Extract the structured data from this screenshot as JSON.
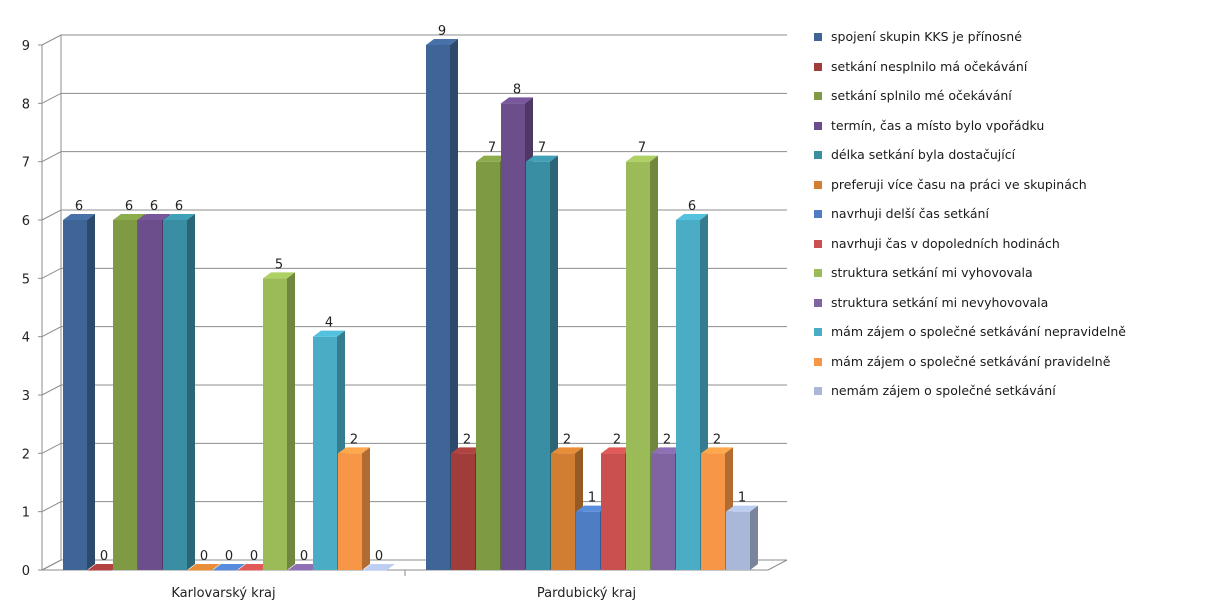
{
  "chart_data": {
    "type": "bar",
    "title": "",
    "xlabel": "",
    "ylabel": "",
    "ylim": [
      0,
      9
    ],
    "yticks": [
      0,
      1,
      2,
      3,
      4,
      5,
      6,
      7,
      8,
      9
    ],
    "grid": true,
    "legend_position": "right",
    "categories": [
      "Karlovarský kraj",
      "Pardubický kraj"
    ],
    "series": [
      {
        "name": "spojení skupin KKS je přínosné",
        "color": "#3F6596",
        "values": [
          6,
          9
        ]
      },
      {
        "name": "setkání nesplnilo má očekávání",
        "color": "#A03C3A",
        "values": [
          0,
          2
        ]
      },
      {
        "name": "setkání splnilo mé očekávání",
        "color": "#7E9A43",
        "values": [
          6,
          7
        ]
      },
      {
        "name": "termín, čas a místo bylo vpořádku",
        "color": "#6C4E8C",
        "values": [
          6,
          8
        ]
      },
      {
        "name": "délka setkání byla dostačující",
        "color": "#3A8EA3",
        "values": [
          6,
          7
        ]
      },
      {
        "name": "preferuji více času na práci ve skupinách",
        "color": "#D17E33",
        "values": [
          0,
          2
        ]
      },
      {
        "name": "navrhuji delší čas setkání",
        "color": "#4F7DC4",
        "values": [
          0,
          1
        ]
      },
      {
        "name": "navrhuji čas v dopoledních hodinách",
        "color": "#C9504E",
        "values": [
          0,
          2
        ]
      },
      {
        "name": "struktura setkání mi vyhovovala",
        "color": "#9BBB59",
        "values": [
          5,
          7
        ]
      },
      {
        "name": "struktura setkání mi nevyhovovala",
        "color": "#8064A2",
        "values": [
          0,
          2
        ]
      },
      {
        "name": "mám zájem o společné setkávání nepravidelně",
        "color": "#4BACC6",
        "values": [
          4,
          6
        ]
      },
      {
        "name": "mám zájem o společné setkávání pravidelně",
        "color": "#F79646",
        "values": [
          2,
          2
        ]
      },
      {
        "name": "nemám zájem o společné setkávání",
        "color": "#A9B8D8",
        "values": [
          0,
          1
        ]
      }
    ]
  }
}
